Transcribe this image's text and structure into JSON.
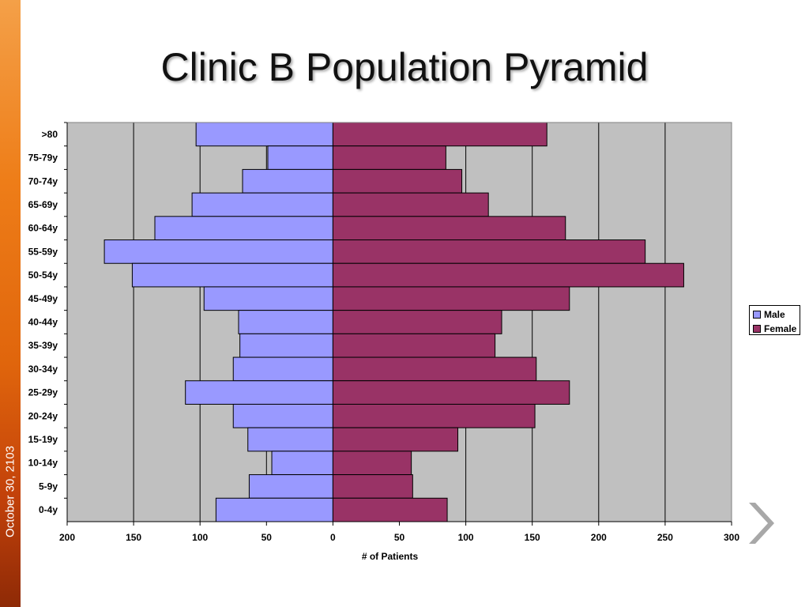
{
  "slide": {
    "title": "Clinic B Population Pyramid",
    "date": "October 30, 2103",
    "accent": "#ee7d18",
    "next_icon": "chevron-right-icon"
  },
  "chart_data": {
    "type": "bar",
    "orientation": "horizontal-diverging",
    "title": "Clinic B Population Pyramid",
    "xlabel": "# of Patients",
    "ylabel": "",
    "xlim": [
      -200,
      300
    ],
    "xticks": [
      -200,
      -150,
      -100,
      -50,
      0,
      50,
      100,
      150,
      200,
      250,
      300
    ],
    "xtick_labels": [
      "200",
      "150",
      "100",
      "50",
      "0",
      "50",
      "100",
      "150",
      "200",
      "250",
      "300"
    ],
    "grid": "vertical",
    "background": "#c0c0c0",
    "legend_position": "right",
    "categories": [
      ">80",
      "75-79y",
      "70-74y",
      "65-69y",
      "60-64y",
      "55-59y",
      "50-54y",
      "45-49y",
      "40-44y",
      "35-39y",
      "30-34y",
      "25-29y",
      "20-24y",
      "15-19y",
      "10-14y",
      "5-9y",
      "0-4y"
    ],
    "series": [
      {
        "name": "Male",
        "color": "#9999ff",
        "values": [
          103,
          49,
          68,
          106,
          134,
          172,
          151,
          97,
          71,
          70,
          75,
          111,
          75,
          64,
          46,
          63,
          88
        ]
      },
      {
        "name": "Female",
        "color": "#993366",
        "values": [
          161,
          85,
          97,
          117,
          175,
          235,
          264,
          178,
          127,
          122,
          153,
          178,
          152,
          94,
          59,
          60,
          86
        ]
      }
    ]
  }
}
